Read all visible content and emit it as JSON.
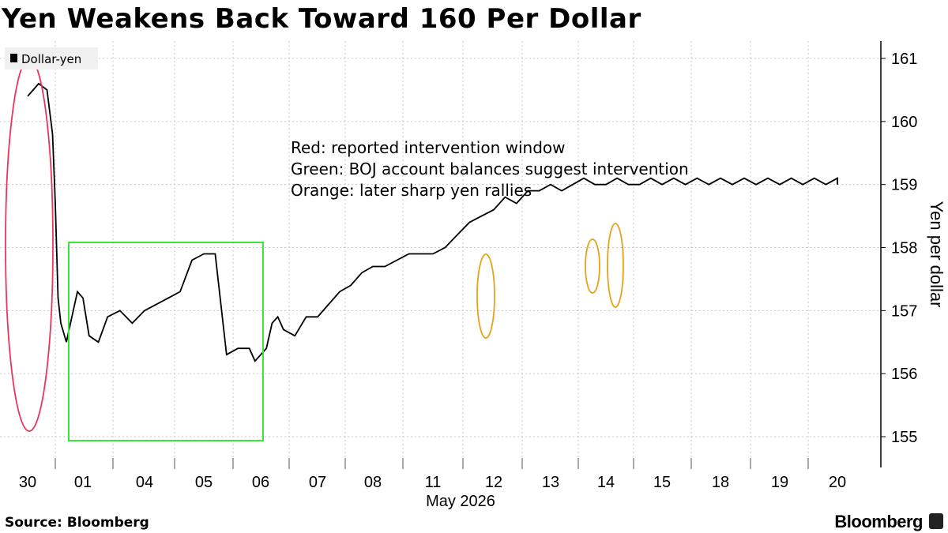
{
  "title": "Yen Weakens Back Toward 160 Per Dollar",
  "source": "Source: Bloomberg",
  "brand": "Bloomberg",
  "legend": "Dollar-yen",
  "notes": [
    "Red: reported intervention window",
    "Green: BOJ account balances suggest intervention",
    "Orange: later sharp yen rallies"
  ],
  "colors": {
    "line": "#000000",
    "grid": "#c8c8c8",
    "red": "#e8365a",
    "green": "#39e639",
    "orange": "#e8a21c"
  },
  "chart_data": {
    "type": "line",
    "title": "Yen Weakens Back Toward 160 Per Dollar",
    "xlabel": "May 2026",
    "ylabel": "Yen per dollar",
    "ylim": [
      154.5,
      161.2
    ],
    "y_ticks": [
      155,
      156,
      157,
      158,
      159,
      160,
      161
    ],
    "x_tick_labels": [
      "30",
      "01",
      "04",
      "05",
      "06",
      "07",
      "08",
      "11",
      "12",
      "13",
      "14",
      "15",
      "18",
      "19",
      "20"
    ],
    "grid": true,
    "legend_position": "top-left",
    "series": [
      {
        "name": "Dollar-yen",
        "x": [
          0,
          0.2,
          0.35,
          0.45,
          0.5,
          0.55,
          0.6,
          0.7,
          0.8,
          0.9,
          1.0,
          1.1,
          1.25,
          1.4,
          1.6,
          1.8,
          2.0,
          2.2,
          2.4,
          2.6,
          2.8,
          3.0,
          3.2,
          3.4,
          3.6,
          3.8,
          3.9,
          4.0,
          4.1,
          4.2,
          4.3,
          4.4,
          4.6,
          4.8,
          5.0,
          5.2,
          5.4,
          5.6,
          5.8,
          6.0,
          6.2,
          6.4,
          6.6,
          6.8,
          7.0,
          7.2,
          7.4,
          7.6,
          7.8,
          8.0,
          8.2,
          8.4,
          8.6,
          8.8,
          9.0,
          9.2,
          9.4,
          9.6,
          9.8,
          10.0,
          10.2,
          10.4,
          10.6,
          10.8,
          11.0,
          11.2,
          11.4,
          11.6,
          11.8,
          12.0,
          12.2,
          12.4,
          12.6,
          12.8,
          13.0,
          13.2,
          13.4,
          13.6,
          13.8,
          14.0,
          14.2
        ],
        "values": [
          160.4,
          160.6,
          160.5,
          159.8,
          158.7,
          157.2,
          156.8,
          156.5,
          156.9,
          157.3,
          157.2,
          156.6,
          156.5,
          156.9,
          157.0,
          156.8,
          157.0,
          157.1,
          157.2,
          157.3,
          157.8,
          157.9,
          157.9,
          156.3,
          156.4,
          156.4,
          156.2,
          156.3,
          156.4,
          156.8,
          156.9,
          156.7,
          156.6,
          156.9,
          156.9,
          157.1,
          157.3,
          157.4,
          157.6,
          157.7,
          157.7,
          157.8,
          157.9,
          157.9,
          157.9,
          158.0,
          158.2,
          158.4,
          158.5,
          158.6,
          158.8,
          158.7,
          158.9,
          158.9,
          159.0,
          158.9,
          159.0,
          159.1,
          159.0,
          159.0,
          159.1,
          159.0,
          159.0,
          159.1,
          159.0,
          159.1,
          159.0,
          159.1,
          159.0,
          159.1,
          159.0,
          159.1,
          159.0,
          159.1,
          159.0,
          159.1,
          159.0,
          159.1,
          159.0,
          159.1,
          159.0
        ]
      }
    ],
    "annotations": [
      "Red: reported intervention window",
      "Green: BOJ account balances suggest intervention",
      "Orange: later sharp yen rallies"
    ]
  }
}
